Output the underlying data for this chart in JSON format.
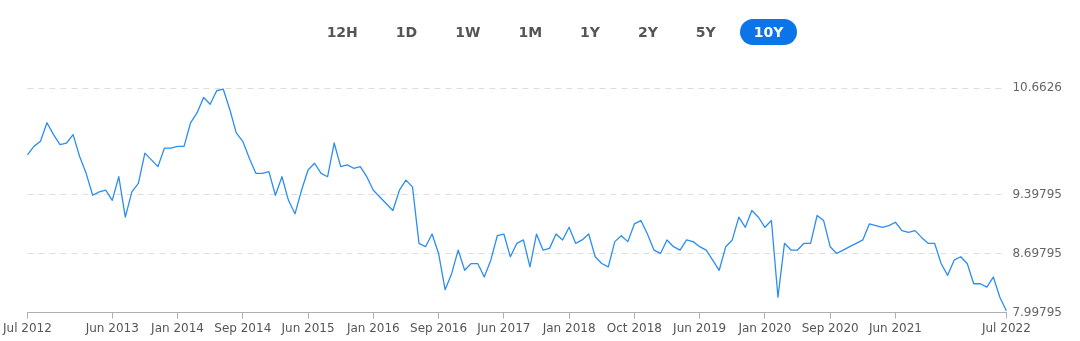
{
  "chart_data": {
    "type": "line",
    "annotations": [
      "12H",
      "1D",
      "1W",
      "1M",
      "1Y",
      "2Y",
      "5Y",
      "10Y"
    ],
    "categories": [
      "Jul 2012",
      null,
      null,
      null,
      null,
      null,
      null,
      null,
      null,
      null,
      null,
      null,
      null,
      "Jun 2013",
      null,
      null,
      null,
      null,
      null,
      null,
      null,
      null,
      null,
      "Jan 2014",
      null,
      null,
      null,
      null,
      null,
      null,
      null,
      null,
      null,
      "Sep 2014",
      null,
      null,
      null,
      null,
      null,
      null,
      null,
      null,
      null,
      "Jun 2015",
      null,
      null,
      null,
      null,
      null,
      null,
      null,
      null,
      null,
      "Jan 2016",
      null,
      null,
      null,
      null,
      null,
      null,
      null,
      null,
      null,
      "Sep 2016",
      null,
      null,
      null,
      null,
      null,
      null,
      null,
      null,
      null,
      "Jun 2017",
      null,
      null,
      null,
      null,
      null,
      null,
      null,
      null,
      null,
      "Jan 2018",
      null,
      null,
      null,
      null,
      null,
      null,
      null,
      null,
      null,
      "Oct 2018",
      null,
      null,
      null,
      null,
      null,
      null,
      null,
      null,
      null,
      "Jun 2019",
      null,
      null,
      null,
      null,
      null,
      null,
      null,
      null,
      null,
      "Jan 2020",
      null,
      null,
      null,
      null,
      null,
      null,
      null,
      null,
      null,
      "Sep 2020",
      null,
      null,
      null,
      null,
      null,
      null,
      null,
      null,
      null,
      "Jun 2021",
      null,
      null,
      null,
      null,
      null,
      null,
      null,
      null,
      null,
      null,
      null,
      null,
      null,
      null,
      null,
      null,
      "Jul 2022"
    ],
    "series": [
      {
        "color": "#2b8ef0",
        "values": [
          9.87,
          9.97,
          10.03,
          10.25,
          10.11,
          9.99,
          10.01,
          10.11,
          9.85,
          9.65,
          9.39,
          9.43,
          9.45,
          9.33,
          9.61,
          9.13,
          9.43,
          9.53,
          9.89,
          9.81,
          9.73,
          9.95,
          9.95,
          9.97,
          9.97,
          10.25,
          10.37,
          10.55,
          10.47,
          10.63,
          10.65,
          10.41,
          10.13,
          10.03,
          9.83,
          9.65,
          9.65,
          9.67,
          9.39,
          9.61,
          9.33,
          9.17,
          9.45,
          9.69,
          9.77,
          9.65,
          9.61,
          10.01,
          9.73,
          9.75,
          9.71,
          9.73,
          9.61,
          9.45,
          9.37,
          9.29,
          9.21,
          9.45,
          9.57,
          9.49,
          8.82,
          8.78,
          8.93,
          8.7,
          8.27,
          8.46,
          8.74,
          8.5,
          8.58,
          8.58,
          8.42,
          8.62,
          8.91,
          8.93,
          8.66,
          8.82,
          8.86,
          8.54,
          8.93,
          8.74,
          8.76,
          8.93,
          8.86,
          9.01,
          8.82,
          8.86,
          8.93,
          8.66,
          8.58,
          8.54,
          8.84,
          8.91,
          8.84,
          9.05,
          9.09,
          8.93,
          8.74,
          8.7,
          8.86,
          8.78,
          8.74,
          8.86,
          8.84,
          8.78,
          8.74,
          8.62,
          8.5,
          8.78,
          8.86,
          9.13,
          9.01,
          9.21,
          9.13,
          9.01,
          9.09,
          8.18,
          8.82,
          8.74,
          8.74,
          8.82,
          8.82,
          9.15,
          9.09,
          8.78,
          8.7,
          8.74,
          8.78,
          8.82,
          8.86,
          9.05,
          9.03,
          9.01,
          9.03,
          9.07,
          8.97,
          8.95,
          8.97,
          8.89,
          8.82,
          8.82,
          8.58,
          8.44,
          8.62,
          8.66,
          8.58,
          8.34,
          8.34,
          8.3,
          8.42,
          8.18,
          8.02
        ]
      }
    ],
    "ylim": [
      7.99795,
      10.6626
    ],
    "yticks": [
      7.99795,
      8.69795,
      9.39795,
      10.6626
    ],
    "grid": "y",
    "legend": false,
    "marker": "none",
    "line_style": "solid"
  }
}
